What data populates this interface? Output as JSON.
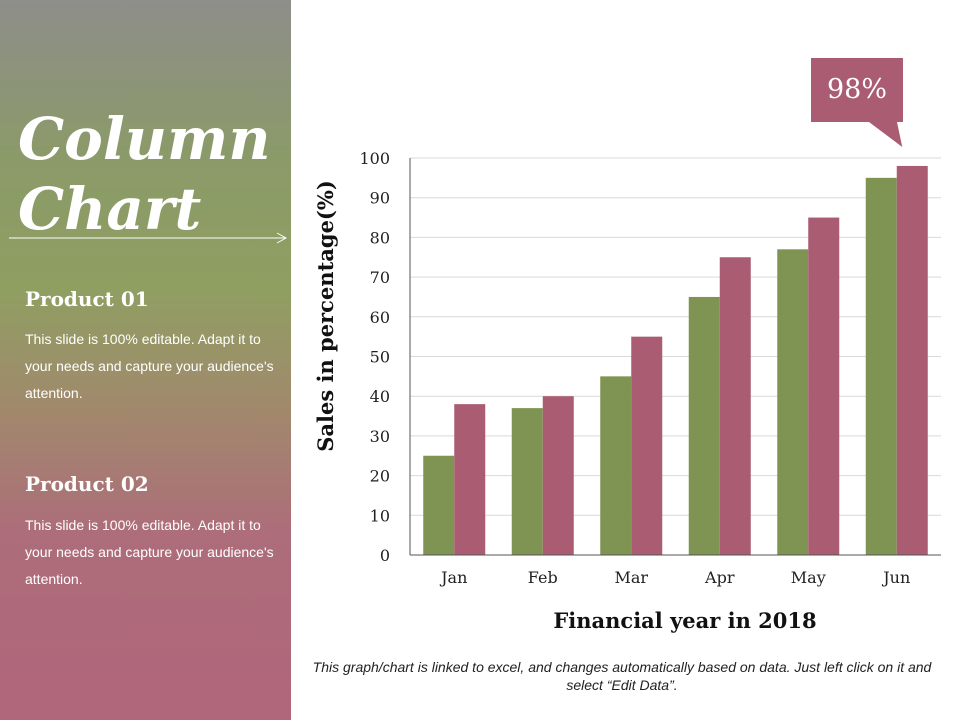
{
  "slide": {
    "title_line1": "Column",
    "title_line2": "Chart",
    "product1": {
      "heading": "Product 01",
      "text": "This slide is 100% editable. Adapt it to your needs and capture your audience's attention."
    },
    "product2": {
      "heading": "Product 02",
      "text": "This slide is 100% editable. Adapt it to your needs and capture your audience's attention."
    },
    "footnote": "This graph/chart is linked to excel, and changes automatically based on data. Just left click on it and select “Edit Data”.",
    "callout": "98%"
  },
  "colors": {
    "product1": "#7f9452",
    "product2": "#a95c72",
    "callout": "#a95c72",
    "grid": "#d9d9d9",
    "axis": "#555555"
  },
  "chart_data": {
    "type": "bar",
    "categories": [
      "Jan",
      "Feb",
      "Mar",
      "Apr",
      "May",
      "Jun"
    ],
    "series": [
      {
        "values": [
          25,
          37,
          45,
          65,
          77,
          95
        ]
      },
      {
        "values": [
          38,
          40,
          55,
          75,
          85,
          98
        ]
      }
    ],
    "xlabel": "Financial year in 2018",
    "ylabel": "Sales in percentage(%)",
    "ylim": [
      0,
      100
    ],
    "yticks": [
      0,
      10,
      20,
      30,
      40,
      50,
      60,
      70,
      80,
      90,
      100
    ],
    "grid": true,
    "legend": "none"
  }
}
